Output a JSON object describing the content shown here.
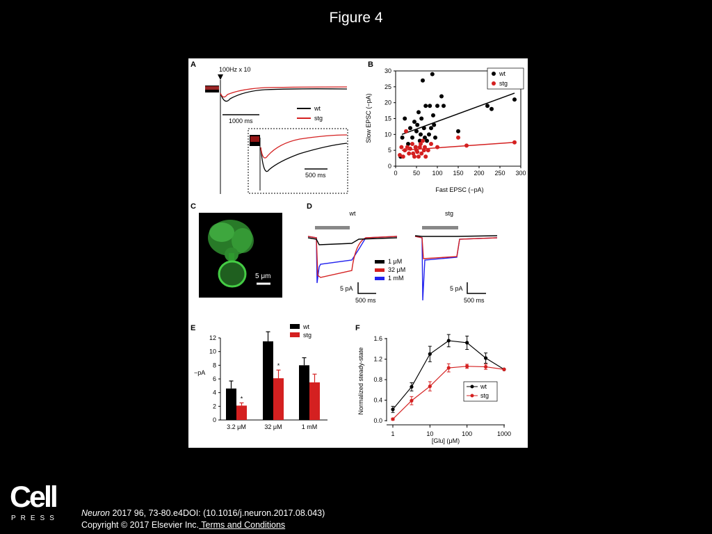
{
  "slide": {
    "title": "Figure 4",
    "journal": "Neuron",
    "citation_rest": " 2017 96, 73-80.e4DOI: (10.1016/j.neuron.2017.08.043)",
    "copyright": "Copyright © 2017 Elsevier Inc.",
    "terms": " Terms and Conditions",
    "logo_word": "Cell",
    "logo_sub": "PRESS"
  },
  "colors": {
    "wt": "#000000",
    "stg": "#d42020",
    "high": "#2222ee",
    "cell": "#3ab83a"
  },
  "panel_labels": [
    "A",
    "B",
    "C",
    "D",
    "E",
    "F"
  ],
  "chart_data": [
    {
      "panel": "A",
      "type": "line",
      "stim_label": "100Hz x 10",
      "scalebar_main": "1000 ms",
      "scalebar_inset": "500 ms",
      "legend": [
        "wt",
        "stg"
      ]
    },
    {
      "panel": "B",
      "type": "scatter",
      "xlabel": "Fast EPSC (−pA)",
      "ylabel": "Slow EPSC (−pA)",
      "xlim": [
        0,
        300
      ],
      "ylim": [
        0,
        30
      ],
      "xticks": [
        "0",
        "50",
        "100",
        "150",
        "200",
        "250",
        "300"
      ],
      "yticks": [
        "0",
        "5",
        "10",
        "15",
        "20",
        "25",
        "30"
      ],
      "legend": [
        "wt",
        "stg"
      ],
      "series": [
        {
          "name": "wt",
          "points": [
            [
              12,
              3
            ],
            [
              16,
              9
            ],
            [
              22,
              15
            ],
            [
              30,
              7
            ],
            [
              35,
              12
            ],
            [
              40,
              9
            ],
            [
              45,
              14
            ],
            [
              48,
              6
            ],
            [
              50,
              11
            ],
            [
              52,
              13
            ],
            [
              55,
              17
            ],
            [
              58,
              8
            ],
            [
              60,
              10
            ],
            [
              62,
              15
            ],
            [
              65,
              27
            ],
            [
              68,
              12
            ],
            [
              70,
              9
            ],
            [
              72,
              19
            ],
            [
              75,
              8
            ],
            [
              80,
              10
            ],
            [
              82,
              19
            ],
            [
              85,
              12
            ],
            [
              88,
              29
            ],
            [
              90,
              16
            ],
            [
              92,
              13
            ],
            [
              95,
              9
            ],
            [
              100,
              19
            ],
            [
              110,
              22
            ],
            [
              115,
              19
            ],
            [
              150,
              11
            ],
            [
              220,
              19
            ],
            [
              230,
              18
            ],
            [
              285,
              21
            ]
          ],
          "fit": [
            [
              15,
              10
            ],
            [
              285,
              23
            ]
          ]
        },
        {
          "name": "stg",
          "points": [
            [
              10,
              3.5
            ],
            [
              14,
              6
            ],
            [
              18,
              3
            ],
            [
              22,
              5
            ],
            [
              25,
              11
            ],
            [
              28,
              6
            ],
            [
              32,
              4
            ],
            [
              35,
              5.5
            ],
            [
              40,
              7
            ],
            [
              42,
              4
            ],
            [
              45,
              3
            ],
            [
              48,
              6
            ],
            [
              50,
              5
            ],
            [
              52,
              4.5
            ],
            [
              55,
              3
            ],
            [
              58,
              6
            ],
            [
              60,
              7
            ],
            [
              62,
              4
            ],
            [
              65,
              8
            ],
            [
              68,
              5
            ],
            [
              70,
              6
            ],
            [
              72,
              3
            ],
            [
              78,
              5
            ],
            [
              85,
              7
            ],
            [
              100,
              6
            ],
            [
              150,
              9
            ],
            [
              170,
              6.5
            ],
            [
              285,
              7.5
            ]
          ],
          "fit": [
            [
              15,
              5
            ],
            [
              285,
              7.5
            ]
          ]
        }
      ]
    },
    {
      "panel": "C",
      "type": "image",
      "scalebar": "5 μm"
    },
    {
      "panel": "D",
      "type": "line",
      "titles": [
        "wt",
        "stg"
      ],
      "legend": [
        "1 μM",
        "32 μM",
        "1 mM"
      ],
      "scalebar_y": "5 pA",
      "scalebar_x": "500 ms"
    },
    {
      "panel": "E",
      "type": "bar",
      "ylabel": "−pA",
      "ylim": [
        0,
        12
      ],
      "yticks": [
        "0",
        "2",
        "4",
        "6",
        "8",
        "10",
        "12"
      ],
      "categories": [
        "3.2 μM",
        "32 μM",
        "1 mM"
      ],
      "series": [
        {
          "name": "wt",
          "values": [
            4.6,
            11.5,
            8.0
          ],
          "err": [
            1.1,
            1.4,
            1.1
          ]
        },
        {
          "name": "stg",
          "values": [
            2.1,
            6.1,
            5.5
          ],
          "err": [
            0.4,
            1.2,
            1.2
          ]
        }
      ],
      "significance": [
        "*",
        "*",
        ""
      ]
    },
    {
      "panel": "F",
      "type": "line",
      "xlabel": "[Glu] (μM)",
      "ylabel": "Normalized steady-state",
      "xscale": "log",
      "xlim": [
        1,
        1000
      ],
      "ylim": [
        0,
        1.6
      ],
      "xticks": [
        "1",
        "10",
        "100",
        "1000"
      ],
      "yticks": [
        "0.0",
        "0.4",
        "0.8",
        "1.2",
        "1.6"
      ],
      "x": [
        1,
        3.2,
        10,
        32,
        100,
        320,
        1000
      ],
      "series": [
        {
          "name": "wt",
          "values": [
            0.22,
            0.66,
            1.3,
            1.56,
            1.52,
            1.22,
            1.0
          ],
          "err": [
            0.06,
            0.08,
            0.15,
            0.12,
            0.13,
            0.1,
            0
          ]
        },
        {
          "name": "stg",
          "values": [
            0.03,
            0.39,
            0.67,
            1.03,
            1.06,
            1.05,
            1.0
          ],
          "err": [
            0.02,
            0.08,
            0.09,
            0.08,
            0.04,
            0.05,
            0
          ]
        }
      ]
    }
  ]
}
